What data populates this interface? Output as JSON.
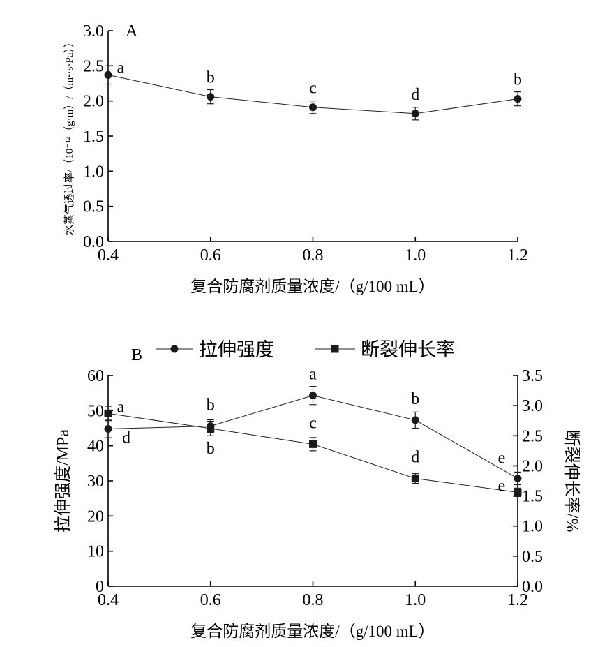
{
  "chart_data": [
    {
      "type": "line",
      "panel_label": "A",
      "ylabel": "水蒸气透过率/（10⁻¹²（g·m）/（m²·s·Pa））",
      "xlabel": "复合防腐剂质量浓度/（g/100 mL）",
      "x": [
        0.4,
        0.6,
        0.8,
        1.0,
        1.2
      ],
      "x_tick_labels": [
        "0.4",
        "0.6",
        "0.8",
        "1.0",
        "1.2"
      ],
      "xlim": [
        0.4,
        1.2
      ],
      "ylim": [
        0.0,
        3.0
      ],
      "y_ticks": [
        "0.0",
        "0.5",
        "1.0",
        "1.5",
        "2.0",
        "2.5",
        "3.0"
      ],
      "grid": false,
      "series": [
        {
          "values": [
            2.37,
            2.06,
            1.91,
            1.82,
            2.03
          ],
          "errors": [
            0.13,
            0.1,
            0.09,
            0.09,
            0.1
          ],
          "letters": [
            "a",
            "b",
            "c",
            "d",
            "b"
          ],
          "marker": "circle"
        }
      ]
    },
    {
      "type": "line",
      "panel_label": "B",
      "xlabel": "复合防腐剂质量浓度/（g/100 mL）",
      "ylabel": "拉伸强度/MPa",
      "y2label": "断裂伸长率/%",
      "x": [
        0.4,
        0.6,
        0.8,
        1.0,
        1.2
      ],
      "x_tick_labels": [
        "0.4",
        "0.6",
        "0.8",
        "1.0",
        "1.2"
      ],
      "xlim": [
        0.4,
        1.2
      ],
      "ylim": [
        0,
        60
      ],
      "y_ticks": [
        "0",
        "10",
        "20",
        "30",
        "40",
        "50",
        "60"
      ],
      "y2lim": [
        0.0,
        3.5
      ],
      "y2_ticks": [
        "0.0",
        "0.5",
        "1.0",
        "1.5",
        "2.0",
        "2.5",
        "3.0",
        "3.5"
      ],
      "legend_position": "top",
      "grid": false,
      "series": [
        {
          "name": "拉伸强度",
          "axis": "left",
          "marker": "circle",
          "values": [
            44.8,
            45.6,
            54.3,
            47.3,
            30.7
          ],
          "errors": [
            2.5,
            1.8,
            2.6,
            2.3,
            1.8
          ],
          "letters": [
            "d",
            "b",
            "a",
            "b",
            "e"
          ]
        },
        {
          "name": "断裂伸长率",
          "axis": "right",
          "marker": "square",
          "values": [
            2.87,
            2.62,
            2.36,
            1.79,
            1.56
          ],
          "errors": [
            0.12,
            0.12,
            0.11,
            0.08,
            0.07
          ],
          "letters": [
            "a",
            "b",
            "c",
            "d",
            "e"
          ]
        }
      ]
    }
  ]
}
